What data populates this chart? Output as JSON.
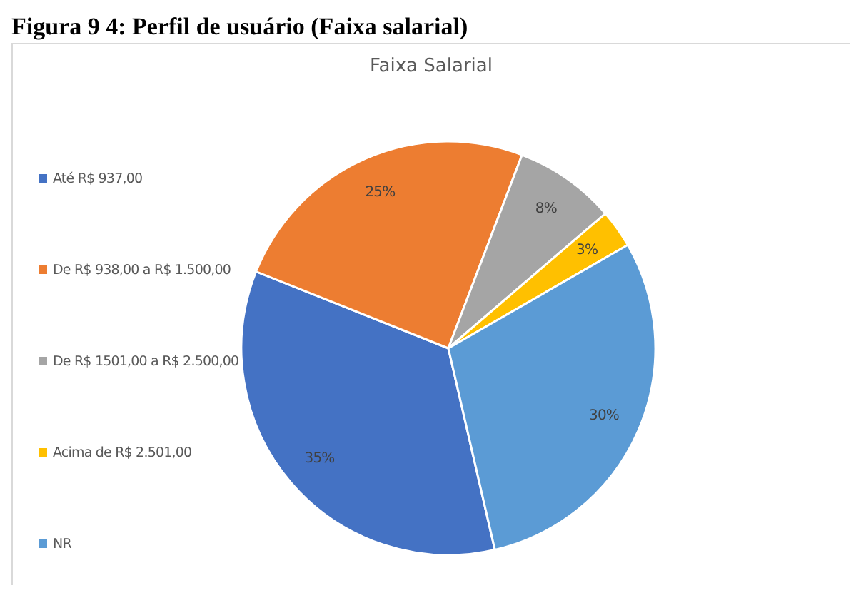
{
  "chart_data": {
    "type": "pie",
    "title": "Faixa Salarial",
    "annotations": [
      "Figura 9 4: Perfil de usuário (Faixa salarial)"
    ],
    "categories": [
      "Até R$ 937,00",
      "De R$ 938,00 a R$ 1.500,00",
      "De R$ 1501,00 a R$ 2.500,00",
      "Acima de R$ 2.501,00",
      "NR"
    ],
    "values": [
      35,
      25,
      8,
      3,
      30
    ],
    "value_labels": [
      "35%",
      "25%",
      "8%",
      "3%",
      "30%"
    ],
    "colors": [
      "#4472c4",
      "#ed7d31",
      "#a5a5a5",
      "#ffc000",
      "#5b9bd5"
    ],
    "legend": "left"
  }
}
